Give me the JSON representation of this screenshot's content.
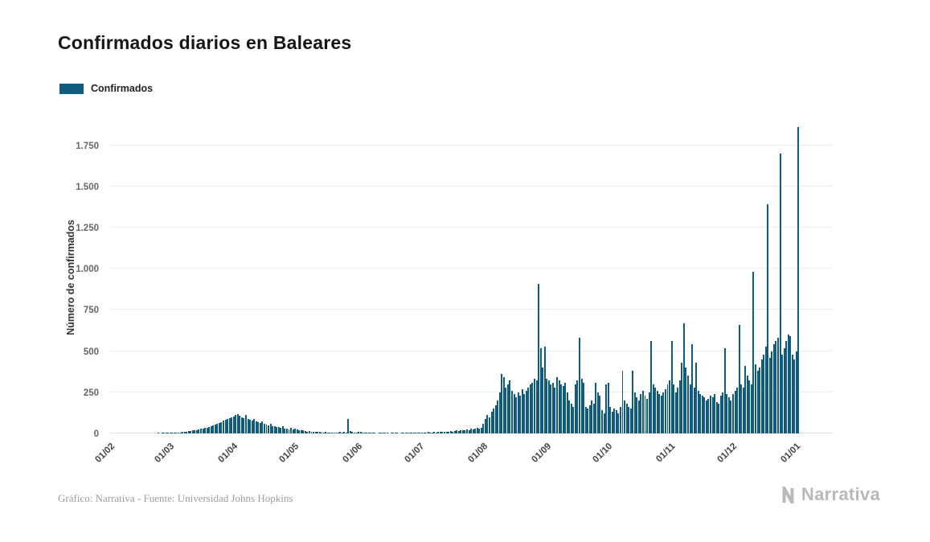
{
  "title": "Confirmados diarios en Baleares",
  "legend": {
    "label": "Confirmados",
    "color": "#0f5c80"
  },
  "footer": {
    "credit": "Gráfico: Narrativa - Fuente: Universidad Johns Hopkins",
    "logo_text": "Narrativa"
  },
  "chart_data": {
    "type": "bar",
    "title": "Confirmados diarios en Baleares",
    "xlabel": "",
    "ylabel": "Número de confirmados",
    "series_name": "Confirmados",
    "bar_color": "#0f5c80",
    "grid": "horizontal",
    "legend_position": "top-left",
    "ylim": [
      0,
      1900
    ],
    "y_ticks": [
      0,
      250,
      500,
      750,
      1000,
      1250,
      1500,
      1750
    ],
    "y_tick_labels": [
      "0",
      "250",
      "500",
      "750",
      "1.000",
      "1.250",
      "1.500",
      "1.750"
    ],
    "x_tick_labels": [
      "01/02",
      "01/03",
      "01/04",
      "01/05",
      "01/06",
      "01/07",
      "01/08",
      "01/09",
      "01/10",
      "01/11",
      "01/12",
      "01/01"
    ],
    "months": [
      {
        "tick": "01/02",
        "values": [
          0,
          0,
          0,
          0,
          0,
          0,
          0,
          0,
          0,
          0,
          0,
          0,
          0,
          0,
          0,
          0,
          0,
          0,
          0,
          0,
          0,
          0,
          0,
          1,
          0,
          1,
          1,
          2,
          2
        ]
      },
      {
        "tick": "01/03",
        "values": [
          2,
          3,
          3,
          4,
          5,
          6,
          8,
          10,
          12,
          14,
          16,
          18,
          20,
          22,
          25,
          28,
          30,
          33,
          36,
          40,
          45,
          50,
          55,
          60,
          65,
          70,
          78,
          85,
          90,
          95,
          100
        ]
      },
      {
        "tick": "01/04",
        "values": [
          105,
          110,
          115,
          108,
          100,
          95,
          110,
          90,
          85,
          80,
          88,
          75,
          70,
          65,
          72,
          60,
          55,
          50,
          58,
          45,
          42,
          40,
          38,
          35,
          42,
          30,
          28,
          26,
          32,
          24
        ]
      },
      {
        "tick": "01/05",
        "values": [
          28,
          25,
          22,
          20,
          18,
          15,
          12,
          14,
          10,
          8,
          10,
          12,
          8,
          6,
          5,
          8,
          6,
          5,
          4,
          6,
          5,
          4,
          8,
          6,
          10,
          5,
          88,
          15,
          8,
          5,
          4
        ]
      },
      {
        "tick": "01/06",
        "values": [
          10,
          8,
          5,
          3,
          2,
          2,
          1,
          1,
          1,
          0,
          1,
          1,
          2,
          1,
          1,
          0,
          1,
          1,
          2,
          1,
          0,
          1,
          1,
          2,
          1,
          1,
          2,
          3,
          2,
          2
        ]
      },
      {
        "tick": "01/07",
        "values": [
          4,
          5,
          6,
          5,
          8,
          6,
          7,
          8,
          6,
          9,
          8,
          10,
          9,
          12,
          10,
          14,
          12,
          15,
          18,
          16,
          20,
          18,
          22,
          25,
          22,
          28,
          26,
          30,
          32,
          28,
          35
        ]
      },
      {
        "tick": "01/08",
        "values": [
          60,
          90,
          110,
          100,
          130,
          150,
          170,
          200,
          250,
          360,
          340,
          280,
          300,
          320,
          260,
          240,
          220,
          250,
          230,
          270,
          240,
          260,
          280,
          300,
          310,
          330,
          320,
          910,
          520,
          400,
          530
        ]
      },
      {
        "tick": "01/09",
        "values": [
          330,
          320,
          300,
          310,
          280,
          340,
          320,
          300,
          290,
          310,
          250,
          200,
          180,
          160,
          300,
          320,
          580,
          330,
          310,
          160,
          150,
          170,
          200,
          180,
          310,
          250,
          230,
          140,
          120,
          300
        ]
      },
      {
        "tick": "01/10",
        "values": [
          310,
          160,
          130,
          150,
          140,
          120,
          160,
          380,
          200,
          180,
          160,
          150,
          380,
          250,
          220,
          200,
          240,
          260,
          230,
          210,
          250,
          560,
          300,
          280,
          260,
          240,
          230,
          250,
          270,
          300,
          320
        ]
      },
      {
        "tick": "01/11",
        "values": [
          560,
          300,
          250,
          280,
          320,
          430,
          670,
          400,
          350,
          300,
          540,
          280,
          430,
          260,
          240,
          230,
          220,
          200,
          210,
          230,
          220,
          240,
          190,
          180,
          230,
          250,
          520,
          240,
          220,
          200
        ]
      },
      {
        "tick": "01/12",
        "values": [
          240,
          260,
          280,
          660,
          300,
          280,
          410,
          350,
          320,
          300,
          980,
          420,
          380,
          400,
          450,
          480,
          530,
          1390,
          460,
          500,
          540,
          560,
          580,
          1700,
          480,
          520,
          560,
          600,
          590,
          480,
          450
        ]
      },
      {
        "tick": "01/01",
        "values": [
          500,
          1860
        ]
      }
    ]
  }
}
